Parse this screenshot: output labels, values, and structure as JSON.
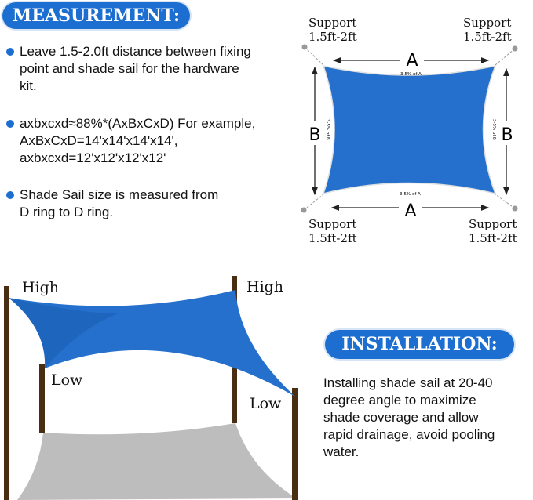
{
  "measurement": {
    "title": "MEASUREMENT:",
    "bullets": [
      "Leave 1.5-2.0ft distance between fixing\npoint and shade sail for the hardware\nkit.",
      "axbxcxd≈88%*(AxBxCxD) For example,\nAxBxCxD=14'x14'x14'x14',\naxbxcxd=12'x12'x12'x12'",
      "Shade Sail size is measured from\nD ring to D ring."
    ]
  },
  "diagram": {
    "supports": [
      "Support\n1.5ft-2ft",
      "Support\n1.5ft-2ft",
      "Support\n1.5ft-2ft",
      "Support\n1.5ft-2ft"
    ],
    "side_a": "A",
    "side_b": "B",
    "sag_a": "3-5% of A",
    "sag_b": "3-5% of B"
  },
  "install_diagram": {
    "labels": [
      "High",
      "High",
      "Low",
      "Low"
    ]
  },
  "installation": {
    "title": "INSTALLATION:",
    "text": "Installing shade sail at 20-40\ndegree angle to maximize\nshade coverage and allow\nrapid drainage, avoid pooling\nwater."
  },
  "colors": {
    "accent": "#1c6fd1",
    "sail": "#2470cc",
    "post": "#4a2e14",
    "shadow": "#bdbdbd"
  }
}
